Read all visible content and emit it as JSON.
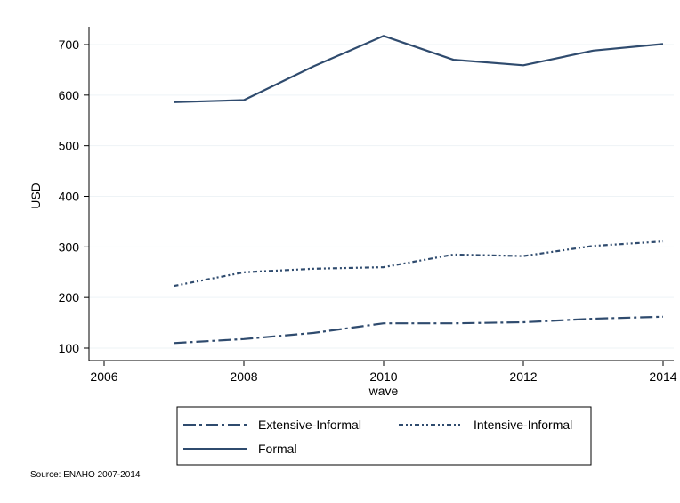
{
  "chart_data": {
    "type": "line",
    "title": "",
    "xlabel": "wave",
    "ylabel": "USD",
    "xlim": [
      2006,
      2014
    ],
    "ylim": [
      100,
      700
    ],
    "xticks": [
      2006,
      2008,
      2010,
      2012,
      2014
    ],
    "yticks": [
      100,
      200,
      300,
      400,
      500,
      600,
      700
    ],
    "grid": true,
    "legend_position": "bottom",
    "x": [
      2007,
      2008,
      2009,
      2010,
      2011,
      2012,
      2013,
      2014
    ],
    "series": [
      {
        "name": "Extensive-Informal",
        "style": "long-dash-dot",
        "color": "#2f4b6e",
        "values": [
          110,
          118,
          130,
          149,
          149,
          151,
          158,
          162
        ]
      },
      {
        "name": "Intensive-Informal",
        "style": "dash-dot-dot",
        "color": "#2f4b6e",
        "values": [
          223,
          250,
          257,
          260,
          285,
          282,
          302,
          311
        ]
      },
      {
        "name": "Formal",
        "style": "solid",
        "color": "#2f4b6e",
        "values": [
          586,
          590,
          657,
          717,
          670,
          659,
          688,
          701
        ]
      }
    ]
  },
  "source_note": "Source: ENAHO 2007-2014",
  "colors": {
    "series": "#2f4b6e",
    "grid": "#eef3f6",
    "axis": "#000000"
  }
}
